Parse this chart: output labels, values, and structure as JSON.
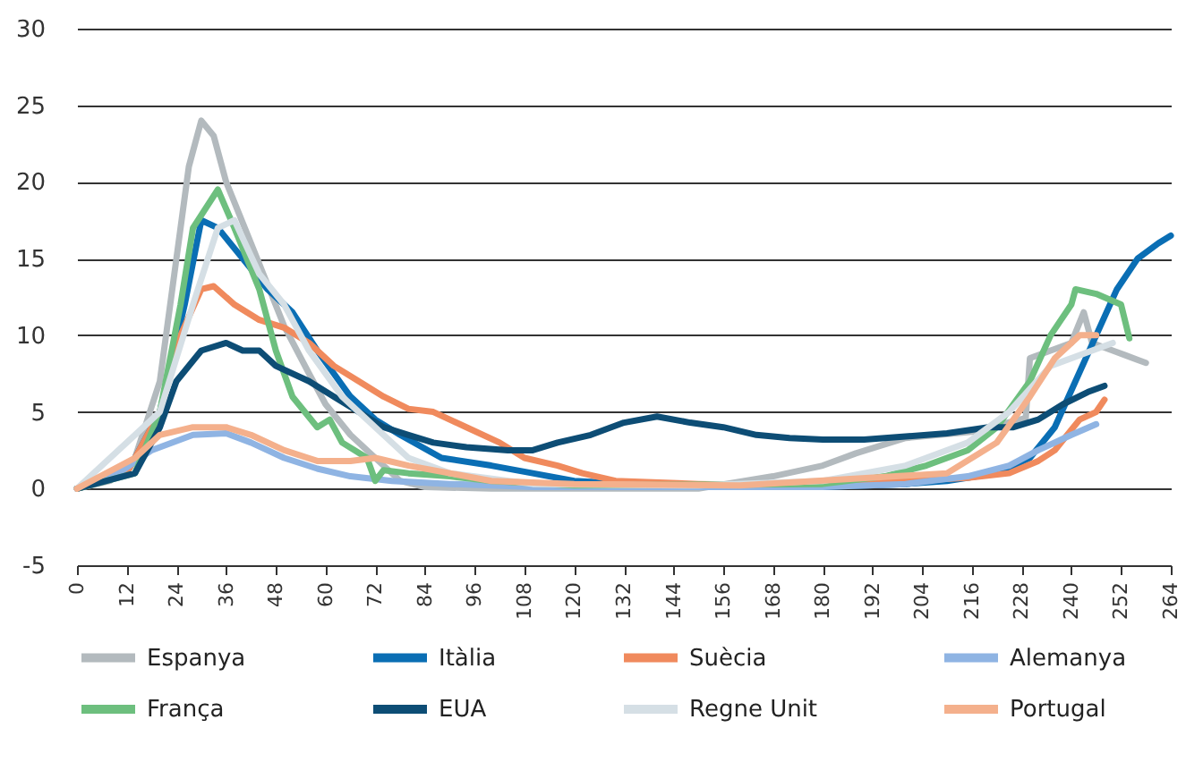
{
  "chart_data": {
    "type": "line",
    "xlim": [
      0,
      264
    ],
    "xticks": [
      0,
      12,
      24,
      36,
      48,
      60,
      72,
      84,
      96,
      108,
      120,
      132,
      144,
      156,
      168,
      180,
      192,
      204,
      216,
      228,
      240,
      252,
      264
    ],
    "ylim": [
      -5,
      30
    ],
    "yticks": [
      -5,
      0,
      5,
      10,
      15,
      20,
      25,
      30
    ],
    "grid": "y",
    "legend": "bottom",
    "series": [
      {
        "name": "Espanya",
        "color": "#b3babe",
        "x": [
          0,
          8,
          14,
          20,
          24,
          27,
          30,
          33,
          36,
          42,
          50,
          56,
          60,
          66,
          72,
          78,
          84,
          100,
          150,
          168,
          180,
          188,
          200,
          216,
          229,
          230,
          240,
          243,
          245,
          250,
          253,
          258
        ],
        "values": [
          0,
          0.5,
          2,
          7,
          15,
          21,
          24,
          23,
          20,
          16,
          10.6,
          7.5,
          5.5,
          3.5,
          2,
          0.5,
          0.1,
          0,
          0,
          0.8,
          1.5,
          2.3,
          3.3,
          3.7,
          4.6,
          8.5,
          9.5,
          11.5,
          9.5,
          9,
          8.7,
          8.2
        ]
      },
      {
        "name": "Itàlia",
        "color": "#0a6eb4",
        "x": [
          0,
          12,
          20,
          26,
          30,
          34,
          40,
          46,
          52,
          58,
          66,
          72,
          78,
          88,
          100,
          110,
          120,
          140,
          180,
          200,
          210,
          222,
          230,
          236,
          241,
          246,
          251,
          256,
          261,
          264
        ],
        "values": [
          0,
          1,
          5,
          12,
          17.5,
          17,
          15,
          13,
          11.5,
          9,
          6,
          4.5,
          3.5,
          2,
          1.5,
          1,
          0.5,
          0.2,
          0.1,
          0.3,
          0.5,
          1,
          2,
          4,
          7,
          10,
          13,
          15,
          16,
          16.5
        ]
      },
      {
        "name": "Suècia",
        "color": "#f08a5d",
        "x": [
          0,
          12,
          20,
          25,
          30,
          33,
          38,
          44,
          50,
          56,
          62,
          68,
          74,
          80,
          86,
          94,
          102,
          108,
          116,
          122,
          130,
          150,
          170,
          190,
          200,
          215,
          225,
          232,
          236,
          242,
          246,
          248
        ],
        "values": [
          0,
          1,
          5,
          10,
          13,
          13.2,
          12,
          11,
          10.5,
          9.5,
          8,
          7,
          6,
          5.2,
          5,
          4,
          3,
          2,
          1.5,
          1,
          0.5,
          0.3,
          0.2,
          0.5,
          0.5,
          0.7,
          1,
          1.8,
          2.5,
          4.5,
          5,
          5.8
        ]
      },
      {
        "name": "Alemanya",
        "color": "#8fb4e3",
        "x": [
          0,
          10,
          18,
          28,
          36,
          42,
          50,
          58,
          66,
          76,
          90,
          110,
          180,
          200,
          215,
          225,
          232,
          240,
          246
        ],
        "values": [
          0,
          1,
          2.5,
          3.5,
          3.6,
          3,
          2,
          1.3,
          0.8,
          0.5,
          0.3,
          0.1,
          0.1,
          0.3,
          0.8,
          1.5,
          2.5,
          3.5,
          4.2
        ]
      },
      {
        "name": "França",
        "color": "#6dbf7e",
        "x": [
          0,
          14,
          20,
          25,
          28,
          34,
          38,
          44,
          48,
          52,
          58,
          61,
          64,
          70,
          72,
          74,
          80,
          90,
          100,
          120,
          180,
          195,
          205,
          215,
          222,
          230,
          235,
          240,
          241,
          246,
          252,
          254
        ],
        "values": [
          0,
          1,
          5,
          12,
          17,
          19.5,
          17,
          13,
          9,
          6,
          4,
          4.5,
          3,
          2,
          0.5,
          1.2,
          1,
          0.8,
          0.5,
          0.2,
          0.3,
          0.8,
          1.5,
          2.5,
          4,
          7,
          10,
          12,
          13,
          12.7,
          12,
          9.8
        ]
      },
      {
        "name": "EUA",
        "color": "#0d4d75",
        "x": [
          0,
          14,
          20,
          24,
          30,
          36,
          40,
          44,
          48,
          56,
          62,
          68,
          74,
          80,
          86,
          94,
          104,
          110,
          116,
          124,
          132,
          140,
          148,
          156,
          164,
          172,
          180,
          190,
          200,
          210,
          220,
          226,
          232,
          238,
          244,
          248
        ],
        "values": [
          0,
          1,
          4,
          7,
          9,
          9.5,
          9,
          9,
          8,
          7,
          6,
          5,
          4,
          3.5,
          3,
          2.7,
          2.5,
          2.5,
          3,
          3.5,
          4.3,
          4.7,
          4.3,
          4,
          3.5,
          3.3,
          3.2,
          3.2,
          3.4,
          3.6,
          4,
          4,
          4.5,
          5.5,
          6.3,
          6.7
        ]
      },
      {
        "name": "Regne Unit",
        "color": "#d5dfe5",
        "x": [
          0,
          20,
          28,
          34,
          38,
          44,
          50,
          56,
          64,
          72,
          80,
          90,
          110,
          150,
          180,
          200,
          215,
          225,
          235,
          245,
          250
        ],
        "values": [
          0,
          5,
          12,
          17,
          17.5,
          14,
          12,
          9,
          6,
          4,
          2,
          1,
          0.3,
          0.2,
          0.5,
          1.5,
          3,
          5,
          8,
          9,
          9.5
        ]
      },
      {
        "name": "Portugal",
        "color": "#f4b08c",
        "x": [
          0,
          14,
          20,
          28,
          36,
          42,
          50,
          58,
          66,
          72,
          80,
          90,
          100,
          120,
          160,
          210,
          222,
          230,
          236,
          242,
          246
        ],
        "values": [
          0,
          2,
          3.5,
          4,
          4,
          3.5,
          2.5,
          1.8,
          1.8,
          2,
          1.5,
          1,
          0.5,
          0.3,
          0.2,
          1,
          3,
          6,
          8.5,
          10,
          10
        ]
      }
    ]
  }
}
